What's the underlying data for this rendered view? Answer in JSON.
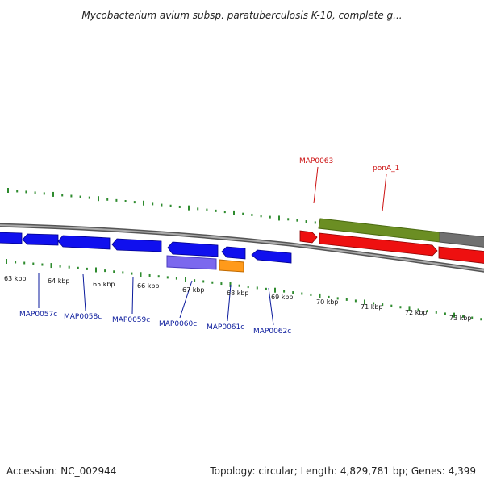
{
  "title": "Mycobacterium avium subsp. paratuberculosis K-10, complete g...",
  "footer": {
    "accession": "Accession: NC_002944",
    "summary": "Topology: circular; Length: 4,829,781 bp; Genes: 4,399"
  },
  "colors": {
    "reverse_gene": "#1010ee",
    "forward_gene": "#ee1010",
    "label_reverse": "#0a1a9c",
    "label_forward": "#cc1111",
    "tick": "#2e8b2e",
    "backbone": "#808080",
    "cds_olive": "#6b8e23",
    "cds_violet": "#7b68ee",
    "cds_orange": "#ff9a1a",
    "cds_gray": "#707070"
  },
  "kbp_labels": [
    "63 kbp",
    "64 kbp",
    "65 kbp",
    "66 kbp",
    "67 kbp",
    "68 kbp",
    "69 kbp",
    "70 kbp",
    "71 kbp",
    "72 kbp",
    "73 kbp"
  ],
  "gene_labels_reverse": [
    "MAP0057c",
    "MAP0058c",
    "MAP0059c",
    "MAP0060c",
    "MAP0061c",
    "MAP0062c"
  ],
  "gene_labels_forward": [
    "MAP0063",
    "ponA_1"
  ]
}
